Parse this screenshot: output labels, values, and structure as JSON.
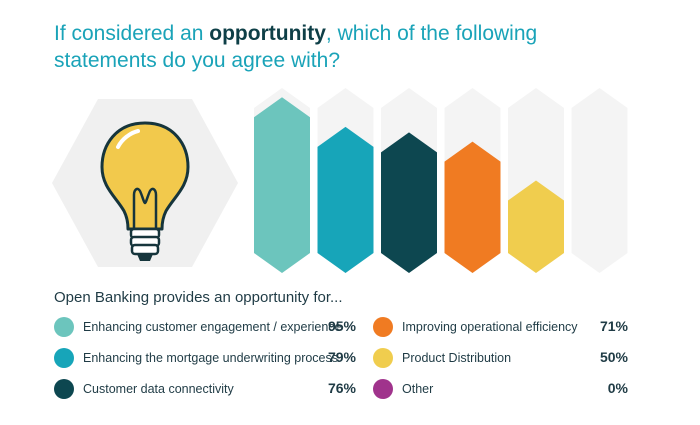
{
  "title": {
    "pre": "If considered an ",
    "emphasis": "opportunity",
    "post": ", which of the following statements do you agree with?"
  },
  "subtitle": "Open Banking provides an opportunity for...",
  "icon": "lightbulb-icon",
  "colors": {
    "title": "#1aa3b8",
    "title_emphasis": "#0e3f47",
    "track": "#f4f4f4",
    "bulb_background": "#f0f0f0"
  },
  "chart_data": {
    "type": "bar",
    "ylim": [
      0,
      100
    ],
    "categories": [
      "Enhancing customer engagement / experience",
      "Enhancing the mortgage underwriting process",
      "Customer data connectivity",
      "Improving operational efficiency",
      "Product Distribution",
      "Other"
    ],
    "values": [
      95,
      79,
      76,
      71,
      50,
      0
    ],
    "value_labels": [
      "95%",
      "79%",
      "76%",
      "71%",
      "50%",
      "0%"
    ],
    "colors": [
      "#6cc5bd",
      "#17a5b9",
      "#0d4750",
      "#f07b22",
      "#f0cd4e",
      "#a0338c"
    ]
  }
}
